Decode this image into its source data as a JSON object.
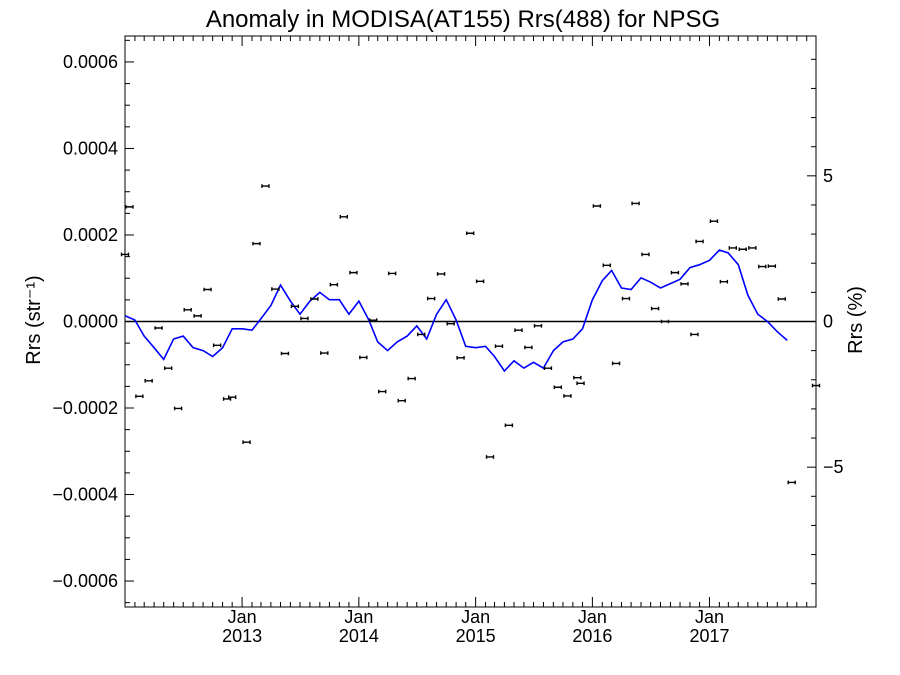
{
  "chart_data": {
    "type": "scatter",
    "title": "Anomaly in MODISA(AT155) Rrs(488) for NPSG",
    "ylabel_left": "Rrs (str⁻¹)",
    "ylabel_right": "Rrs (%)",
    "x_range": [
      "2012-01-01",
      "2017-11-30"
    ],
    "x_tick_labels": [
      {
        "month": "Jan",
        "year": "2013",
        "date": "2013-01-01"
      },
      {
        "month": "Jan",
        "year": "2014",
        "date": "2014-01-01"
      },
      {
        "month": "Jan",
        "year": "2015",
        "date": "2015-01-01"
      },
      {
        "month": "Jan",
        "year": "2016",
        "date": "2016-01-01"
      },
      {
        "month": "Jan",
        "year": "2017",
        "date": "2017-01-01"
      }
    ],
    "ylim_left": [
      -0.00066,
      0.00066
    ],
    "ylim_right": [
      -9.8,
      9.8
    ],
    "yticks_left": [
      {
        "value": 0.0006,
        "label": "0.0006"
      },
      {
        "value": 0.0004,
        "label": "0.0004"
      },
      {
        "value": 0.0002,
        "label": "0.0002"
      },
      {
        "value": 0.0,
        "label": "0.0000"
      },
      {
        "value": -0.0002,
        "label": "−0.0002"
      },
      {
        "value": -0.0004,
        "label": "−0.0004"
      },
      {
        "value": -0.0006,
        "label": "−0.0006"
      }
    ],
    "yticks_right": [
      {
        "value": 5,
        "label": "5"
      },
      {
        "value": 0,
        "label": "0"
      },
      {
        "value": -5,
        "label": "−5"
      }
    ],
    "zero_line": true,
    "grid": false,
    "colors": {
      "line": "#0000ff",
      "points": "#000000",
      "axes": "#000000"
    },
    "points": [
      {
        "x": "2012-01-01",
        "y": 0.000155
      },
      {
        "x": "2012-01-15",
        "y": 0.000265
      },
      {
        "x": "2012-02-15",
        "y": -0.000173
      },
      {
        "x": "2012-03-15",
        "y": -0.000137
      },
      {
        "x": "2012-04-15",
        "y": -1.5e-05
      },
      {
        "x": "2012-05-15",
        "y": -0.000108
      },
      {
        "x": "2012-06-15",
        "y": -0.000201
      },
      {
        "x": "2012-07-15",
        "y": 2.7e-05
      },
      {
        "x": "2012-08-15",
        "y": 1.3e-05
      },
      {
        "x": "2012-09-15",
        "y": 7.4e-05
      },
      {
        "x": "2012-10-15",
        "y": -5.5e-05
      },
      {
        "x": "2012-11-15",
        "y": -0.000179
      },
      {
        "x": "2012-12-01",
        "y": -0.000175
      },
      {
        "x": "2013-01-15",
        "y": -0.000279
      },
      {
        "x": "2013-02-15",
        "y": 0.00018
      },
      {
        "x": "2013-03-15",
        "y": 0.000313
      },
      {
        "x": "2013-04-15",
        "y": 7.5e-05
      },
      {
        "x": "2013-05-15",
        "y": -7.4e-05
      },
      {
        "x": "2013-06-15",
        "y": 3.5e-05
      },
      {
        "x": "2013-07-15",
        "y": 7e-06
      },
      {
        "x": "2013-08-15",
        "y": 5.2e-05
      },
      {
        "x": "2013-09-15",
        "y": -7.3e-05
      },
      {
        "x": "2013-10-15",
        "y": 8.5e-05
      },
      {
        "x": "2013-11-15",
        "y": 0.000242
      },
      {
        "x": "2013-12-15",
        "y": 0.000113
      },
      {
        "x": "2014-01-15",
        "y": -8.3e-05
      },
      {
        "x": "2014-02-15",
        "y": 3e-06
      },
      {
        "x": "2014-03-15",
        "y": -0.000162
      },
      {
        "x": "2014-04-15",
        "y": 0.000111
      },
      {
        "x": "2014-05-15",
        "y": -0.000183
      },
      {
        "x": "2014-06-15",
        "y": -0.000132
      },
      {
        "x": "2014-07-15",
        "y": -3e-05
      },
      {
        "x": "2014-08-15",
        "y": 5.3e-05
      },
      {
        "x": "2014-09-15",
        "y": 0.00011
      },
      {
        "x": "2014-10-15",
        "y": -5e-06
      },
      {
        "x": "2014-11-15",
        "y": -8.4e-05
      },
      {
        "x": "2014-12-15",
        "y": 0.000204
      },
      {
        "x": "2015-01-15",
        "y": 9.3e-05
      },
      {
        "x": "2015-02-15",
        "y": -0.000313
      },
      {
        "x": "2015-03-15",
        "y": -5.7e-05
      },
      {
        "x": "2015-04-15",
        "y": -0.00024
      },
      {
        "x": "2015-05-15",
        "y": -2e-05
      },
      {
        "x": "2015-06-15",
        "y": -6e-05
      },
      {
        "x": "2015-07-15",
        "y": -1e-05
      },
      {
        "x": "2015-08-15",
        "y": -0.000108
      },
      {
        "x": "2015-09-15",
        "y": -0.000152
      },
      {
        "x": "2015-10-15",
        "y": -0.000172
      },
      {
        "x": "2015-11-15",
        "y": -0.00013
      },
      {
        "x": "2015-11-25",
        "y": -0.000143
      },
      {
        "x": "2016-01-15",
        "y": 0.000267
      },
      {
        "x": "2016-02-15",
        "y": 0.00013
      },
      {
        "x": "2016-03-15",
        "y": -9.7e-05
      },
      {
        "x": "2016-04-15",
        "y": 5.3e-05
      },
      {
        "x": "2016-05-15",
        "y": 0.000273
      },
      {
        "x": "2016-06-15",
        "y": 0.000155
      },
      {
        "x": "2016-07-15",
        "y": 3e-05
      },
      {
        "x": "2016-08-15",
        "y": 0.0
      },
      {
        "x": "2016-09-15",
        "y": 0.000113
      },
      {
        "x": "2016-10-15",
        "y": 8.7e-05
      },
      {
        "x": "2016-11-15",
        "y": -3e-05
      },
      {
        "x": "2016-12-01",
        "y": 0.000185
      },
      {
        "x": "2017-01-15",
        "y": 0.000232
      },
      {
        "x": "2017-02-15",
        "y": 9.2e-05
      },
      {
        "x": "2017-03-15",
        "y": 0.00017
      },
      {
        "x": "2017-04-15",
        "y": 0.000167
      },
      {
        "x": "2017-05-15",
        "y": 0.00017
      },
      {
        "x": "2017-06-15",
        "y": 0.000127
      },
      {
        "x": "2017-07-15",
        "y": 0.000128
      },
      {
        "x": "2017-08-15",
        "y": 5.2e-05
      },
      {
        "x": "2017-09-15",
        "y": -0.000372
      },
      {
        "x": "2017-11-30",
        "y": -0.000148
      }
    ],
    "series": [
      {
        "axis": "right",
        "values": [
          {
            "x": "2012-01-01",
            "y": 0.2
          },
          {
            "x": "2012-02-01",
            "y": 0.05
          },
          {
            "x": "2012-03-01",
            "y": -0.5
          },
          {
            "x": "2012-04-01",
            "y": -0.9
          },
          {
            "x": "2012-05-01",
            "y": -1.3
          },
          {
            "x": "2012-06-01",
            "y": -0.6
          },
          {
            "x": "2012-07-01",
            "y": -0.5
          },
          {
            "x": "2012-08-01",
            "y": -0.9
          },
          {
            "x": "2012-09-01",
            "y": -1.0
          },
          {
            "x": "2012-10-01",
            "y": -1.2
          },
          {
            "x": "2012-11-01",
            "y": -0.9
          },
          {
            "x": "2012-12-01",
            "y": -0.25
          },
          {
            "x": "2013-01-01",
            "y": -0.25
          },
          {
            "x": "2013-02-01",
            "y": -0.3
          },
          {
            "x": "2013-03-01",
            "y": 0.1
          },
          {
            "x": "2013-04-01",
            "y": 0.55
          },
          {
            "x": "2013-05-01",
            "y": 1.25
          },
          {
            "x": "2013-06-01",
            "y": 0.7
          },
          {
            "x": "2013-07-01",
            "y": 0.25
          },
          {
            "x": "2013-08-01",
            "y": 0.7
          },
          {
            "x": "2013-09-01",
            "y": 1.0
          },
          {
            "x": "2013-10-01",
            "y": 0.75
          },
          {
            "x": "2013-11-01",
            "y": 0.75
          },
          {
            "x": "2013-12-01",
            "y": 0.25
          },
          {
            "x": "2014-01-01",
            "y": 0.7
          },
          {
            "x": "2014-02-01",
            "y": 0.05
          },
          {
            "x": "2014-03-01",
            "y": -0.7
          },
          {
            "x": "2014-04-01",
            "y": -1.0
          },
          {
            "x": "2014-05-01",
            "y": -0.7
          },
          {
            "x": "2014-06-01",
            "y": -0.5
          },
          {
            "x": "2014-07-01",
            "y": -0.15
          },
          {
            "x": "2014-08-01",
            "y": -0.6
          },
          {
            "x": "2014-09-01",
            "y": 0.25
          },
          {
            "x": "2014-10-01",
            "y": 0.75
          },
          {
            "x": "2014-11-01",
            "y": 0.05
          },
          {
            "x": "2014-12-01",
            "y": -0.85
          },
          {
            "x": "2015-01-01",
            "y": -0.9
          },
          {
            "x": "2015-02-01",
            "y": -0.85
          },
          {
            "x": "2015-03-01",
            "y": -1.2
          },
          {
            "x": "2015-04-01",
            "y": -1.7
          },
          {
            "x": "2015-05-01",
            "y": -1.35
          },
          {
            "x": "2015-06-01",
            "y": -1.6
          },
          {
            "x": "2015-07-01",
            "y": -1.4
          },
          {
            "x": "2015-08-01",
            "y": -1.6
          },
          {
            "x": "2015-09-01",
            "y": -1.0
          },
          {
            "x": "2015-10-01",
            "y": -0.7
          },
          {
            "x": "2015-11-01",
            "y": -0.6
          },
          {
            "x": "2015-12-01",
            "y": -0.25
          },
          {
            "x": "2016-01-01",
            "y": 0.75
          },
          {
            "x": "2016-02-01",
            "y": 1.4
          },
          {
            "x": "2016-03-01",
            "y": 1.75
          },
          {
            "x": "2016-04-01",
            "y": 1.15
          },
          {
            "x": "2016-05-01",
            "y": 1.1
          },
          {
            "x": "2016-06-01",
            "y": 1.5
          },
          {
            "x": "2016-07-01",
            "y": 1.35
          },
          {
            "x": "2016-08-01",
            "y": 1.15
          },
          {
            "x": "2016-09-01",
            "y": 1.3
          },
          {
            "x": "2016-10-01",
            "y": 1.45
          },
          {
            "x": "2016-11-01",
            "y": 1.85
          },
          {
            "x": "2016-12-01",
            "y": 1.95
          },
          {
            "x": "2017-01-01",
            "y": 2.1
          },
          {
            "x": "2017-02-01",
            "y": 2.45
          },
          {
            "x": "2017-03-01",
            "y": 2.35
          },
          {
            "x": "2017-04-01",
            "y": 1.95
          },
          {
            "x": "2017-05-01",
            "y": 0.9
          },
          {
            "x": "2017-06-01",
            "y": 0.25
          },
          {
            "x": "2017-07-01",
            "y": 0.0
          },
          {
            "x": "2017-08-01",
            "y": -0.35
          },
          {
            "x": "2017-09-01",
            "y": -0.65
          }
        ]
      }
    ]
  }
}
